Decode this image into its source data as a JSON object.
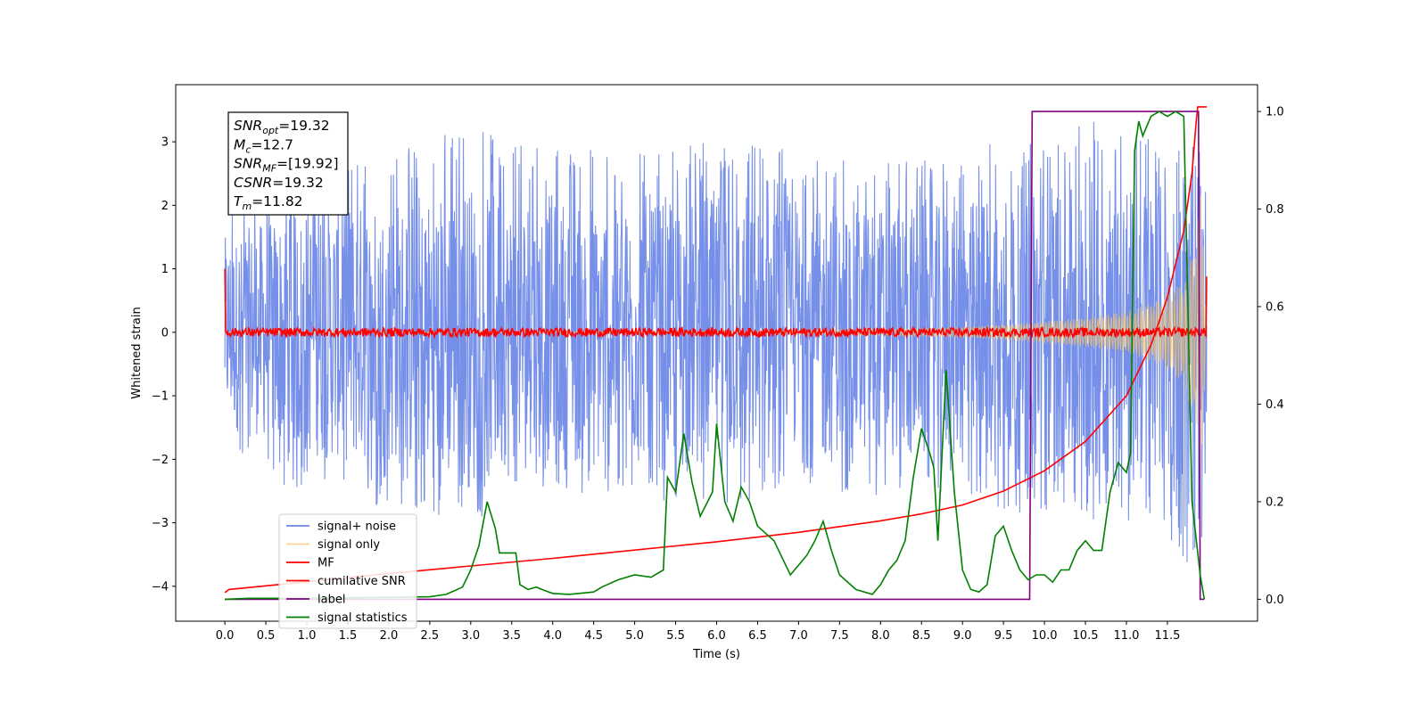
{
  "chart_data": {
    "type": "line",
    "title": "",
    "xlabel": "Time (s)",
    "ylabel": "Whitened strain",
    "xlim": [
      -0.6,
      12.6
    ],
    "ylim": [
      -4.55,
      3.9
    ],
    "y2lim": [
      -0.045,
      1.055
    ],
    "xticks": [
      0.0,
      0.5,
      1.0,
      1.5,
      2.0,
      2.5,
      3.0,
      3.5,
      4.0,
      4.5,
      5.0,
      5.5,
      6.0,
      6.5,
      7.0,
      7.5,
      8.0,
      8.5,
      9.0,
      9.5,
      10.0,
      10.5,
      11.0,
      11.5
    ],
    "xtick_labels": [
      "0.0",
      "0.5",
      "1.0",
      "1.5",
      "2.0",
      "2.5",
      "3.0",
      "3.5",
      "4.0",
      "4.5",
      "5.0",
      "5.5",
      "6.0",
      "6.5",
      "7.0",
      "7.5",
      "8.0",
      "8.5",
      "9.0",
      "9.5",
      "10.0",
      "10.5",
      "11.0",
      "11.5"
    ],
    "yticks": [
      -4,
      -3,
      -2,
      -1,
      0,
      1,
      2,
      3
    ],
    "ytick_labels": [
      "−4",
      "−3",
      "−2",
      "−1",
      "0",
      "1",
      "2",
      "3"
    ],
    "y2ticks": [
      0.0,
      0.2,
      0.4,
      0.6,
      0.8,
      1.0
    ],
    "y2tick_labels": [
      "0.0",
      "0.2",
      "0.4",
      "0.6",
      "0.8",
      "1.0"
    ],
    "grid": false,
    "legend_position": "lower-left",
    "series": [
      {
        "name": "signal+ noise",
        "color": "#6a86e6",
        "axis": "left",
        "x_range": [
          0.0,
          11.98
        ],
        "envelope_upper": [
          [
            0,
            2.0
          ],
          [
            1,
            2.7
          ],
          [
            2,
            2.8
          ],
          [
            3,
            3.3
          ],
          [
            4,
            2.9
          ],
          [
            5,
            2.9
          ],
          [
            6,
            3.0
          ],
          [
            7,
            2.9
          ],
          [
            8,
            2.7
          ],
          [
            9,
            2.9
          ],
          [
            10,
            3.2
          ],
          [
            11,
            3.4
          ],
          [
            11.6,
            3.0
          ],
          [
            11.98,
            2.2
          ]
        ],
        "envelope_lower": [
          [
            0,
            -1.9
          ],
          [
            1,
            -2.6
          ],
          [
            2,
            -2.8
          ],
          [
            3,
            -3.0
          ],
          [
            4,
            -2.5
          ],
          [
            5,
            -2.6
          ],
          [
            6,
            -2.8
          ],
          [
            7,
            -2.5
          ],
          [
            8,
            -2.6
          ],
          [
            9,
            -2.7
          ],
          [
            10,
            -3.0
          ],
          [
            11,
            -3.0
          ],
          [
            11.6,
            -3.4
          ],
          [
            11.9,
            -4.15
          ],
          [
            11.98,
            -2.6
          ]
        ]
      },
      {
        "name": "signal only",
        "color": "#f5c66a",
        "axis": "left",
        "envelope": [
          [
            0,
            0.0
          ],
          [
            6,
            0.02
          ],
          [
            8,
            0.05
          ],
          [
            9,
            0.08
          ],
          [
            9.8,
            0.15
          ],
          [
            10.5,
            0.23
          ],
          [
            11.0,
            0.33
          ],
          [
            11.4,
            0.5
          ],
          [
            11.7,
            0.8
          ],
          [
            11.85,
            1.5
          ],
          [
            11.9,
            2.3
          ],
          [
            11.95,
            1.0
          ],
          [
            11.98,
            0.0
          ]
        ]
      },
      {
        "name": "MF",
        "color": "#ff0000",
        "axis": "left",
        "x_range": [
          0.0,
          11.98
        ],
        "level": 0.0,
        "noise_amp": 0.07,
        "start_value": 1.0,
        "end_value": 0.88
      },
      {
        "name": "cumilative SNR",
        "color": "#ff0000",
        "axis": "left",
        "points": [
          [
            0.0,
            -4.1
          ],
          [
            0.05,
            -4.05
          ],
          [
            1,
            -3.93
          ],
          [
            2,
            -3.8
          ],
          [
            3,
            -3.68
          ],
          [
            4,
            -3.56
          ],
          [
            5,
            -3.43
          ],
          [
            6,
            -3.3
          ],
          [
            7,
            -3.15
          ],
          [
            8,
            -2.97
          ],
          [
            8.5,
            -2.86
          ],
          [
            9,
            -2.72
          ],
          [
            9.5,
            -2.5
          ],
          [
            10,
            -2.18
          ],
          [
            10.5,
            -1.72
          ],
          [
            11,
            -1.0
          ],
          [
            11.3,
            -0.2
          ],
          [
            11.5,
            0.55
          ],
          [
            11.7,
            1.6
          ],
          [
            11.8,
            2.5
          ],
          [
            11.85,
            3.3
          ],
          [
            11.87,
            3.55
          ],
          [
            11.98,
            3.55
          ]
        ]
      },
      {
        "name": "label",
        "color": "#800080",
        "axis": "right",
        "points": [
          [
            0.0,
            0.0
          ],
          [
            9.82,
            0.0
          ],
          [
            9.85,
            1.0
          ],
          [
            11.88,
            1.0
          ],
          [
            11.9,
            0.0
          ],
          [
            11.95,
            0.0
          ]
        ]
      },
      {
        "name": "signal statistics",
        "color": "#008000",
        "axis": "right",
        "points": [
          [
            0.0,
            0.0
          ],
          [
            0.3,
            0.002
          ],
          [
            1.0,
            0.002
          ],
          [
            1.5,
            0.003
          ],
          [
            2.0,
            0.004
          ],
          [
            2.5,
            0.005
          ],
          [
            2.7,
            0.01
          ],
          [
            2.9,
            0.025
          ],
          [
            3.0,
            0.06
          ],
          [
            3.1,
            0.11
          ],
          [
            3.2,
            0.2
          ],
          [
            3.3,
            0.145
          ],
          [
            3.35,
            0.095
          ],
          [
            3.45,
            0.095
          ],
          [
            3.55,
            0.095
          ],
          [
            3.6,
            0.03
          ],
          [
            3.7,
            0.02
          ],
          [
            3.8,
            0.025
          ],
          [
            3.9,
            0.018
          ],
          [
            4.0,
            0.012
          ],
          [
            4.2,
            0.01
          ],
          [
            4.5,
            0.015
          ],
          [
            4.6,
            0.025
          ],
          [
            4.8,
            0.04
          ],
          [
            5.0,
            0.05
          ],
          [
            5.2,
            0.045
          ],
          [
            5.35,
            0.06
          ],
          [
            5.4,
            0.25
          ],
          [
            5.5,
            0.22
          ],
          [
            5.6,
            0.34
          ],
          [
            5.7,
            0.24
          ],
          [
            5.8,
            0.17
          ],
          [
            5.95,
            0.22
          ],
          [
            6.0,
            0.36
          ],
          [
            6.1,
            0.2
          ],
          [
            6.2,
            0.16
          ],
          [
            6.3,
            0.23
          ],
          [
            6.4,
            0.2
          ],
          [
            6.5,
            0.15
          ],
          [
            6.7,
            0.12
          ],
          [
            6.9,
            0.05
          ],
          [
            7.0,
            0.07
          ],
          [
            7.1,
            0.09
          ],
          [
            7.2,
            0.12
          ],
          [
            7.3,
            0.16
          ],
          [
            7.4,
            0.1
          ],
          [
            7.5,
            0.05
          ],
          [
            7.7,
            0.02
          ],
          [
            7.9,
            0.01
          ],
          [
            8.0,
            0.03
          ],
          [
            8.1,
            0.06
          ],
          [
            8.2,
            0.08
          ],
          [
            8.3,
            0.12
          ],
          [
            8.4,
            0.25
          ],
          [
            8.5,
            0.35
          ],
          [
            8.6,
            0.3
          ],
          [
            8.65,
            0.27
          ],
          [
            8.7,
            0.12
          ],
          [
            8.8,
            0.47
          ],
          [
            8.9,
            0.22
          ],
          [
            9.0,
            0.06
          ],
          [
            9.1,
            0.02
          ],
          [
            9.2,
            0.015
          ],
          [
            9.3,
            0.03
          ],
          [
            9.4,
            0.13
          ],
          [
            9.5,
            0.15
          ],
          [
            9.6,
            0.1
          ],
          [
            9.7,
            0.06
          ],
          [
            9.8,
            0.04
          ],
          [
            9.9,
            0.05
          ],
          [
            10.0,
            0.05
          ],
          [
            10.1,
            0.035
          ],
          [
            10.2,
            0.06
          ],
          [
            10.3,
            0.06
          ],
          [
            10.4,
            0.1
          ],
          [
            10.5,
            0.12
          ],
          [
            10.6,
            0.1
          ],
          [
            10.7,
            0.1
          ],
          [
            10.8,
            0.22
          ],
          [
            10.9,
            0.28
          ],
          [
            11.0,
            0.26
          ],
          [
            11.05,
            0.3
          ],
          [
            11.1,
            0.92
          ],
          [
            11.15,
            0.98
          ],
          [
            11.2,
            0.95
          ],
          [
            11.3,
            0.99
          ],
          [
            11.4,
            1.0
          ],
          [
            11.5,
            0.99
          ],
          [
            11.6,
            1.0
          ],
          [
            11.7,
            0.99
          ],
          [
            11.75,
            0.6
          ],
          [
            11.8,
            0.2
          ],
          [
            11.9,
            0.05
          ],
          [
            11.95,
            0.0
          ]
        ]
      }
    ],
    "annotation": {
      "lines": [
        {
          "sym": "SNR",
          "sub": "opt",
          "value": "=19.32"
        },
        {
          "sym": "M",
          "sub": "c",
          "value": "=12.7"
        },
        {
          "sym": "SNR",
          "sub": "MF",
          "value": "=[19.92]"
        },
        {
          "sym": "CSNR",
          "sub": "",
          "value": "=19.32"
        },
        {
          "sym": "T",
          "sub": "m",
          "value": "=11.82"
        }
      ]
    }
  }
}
